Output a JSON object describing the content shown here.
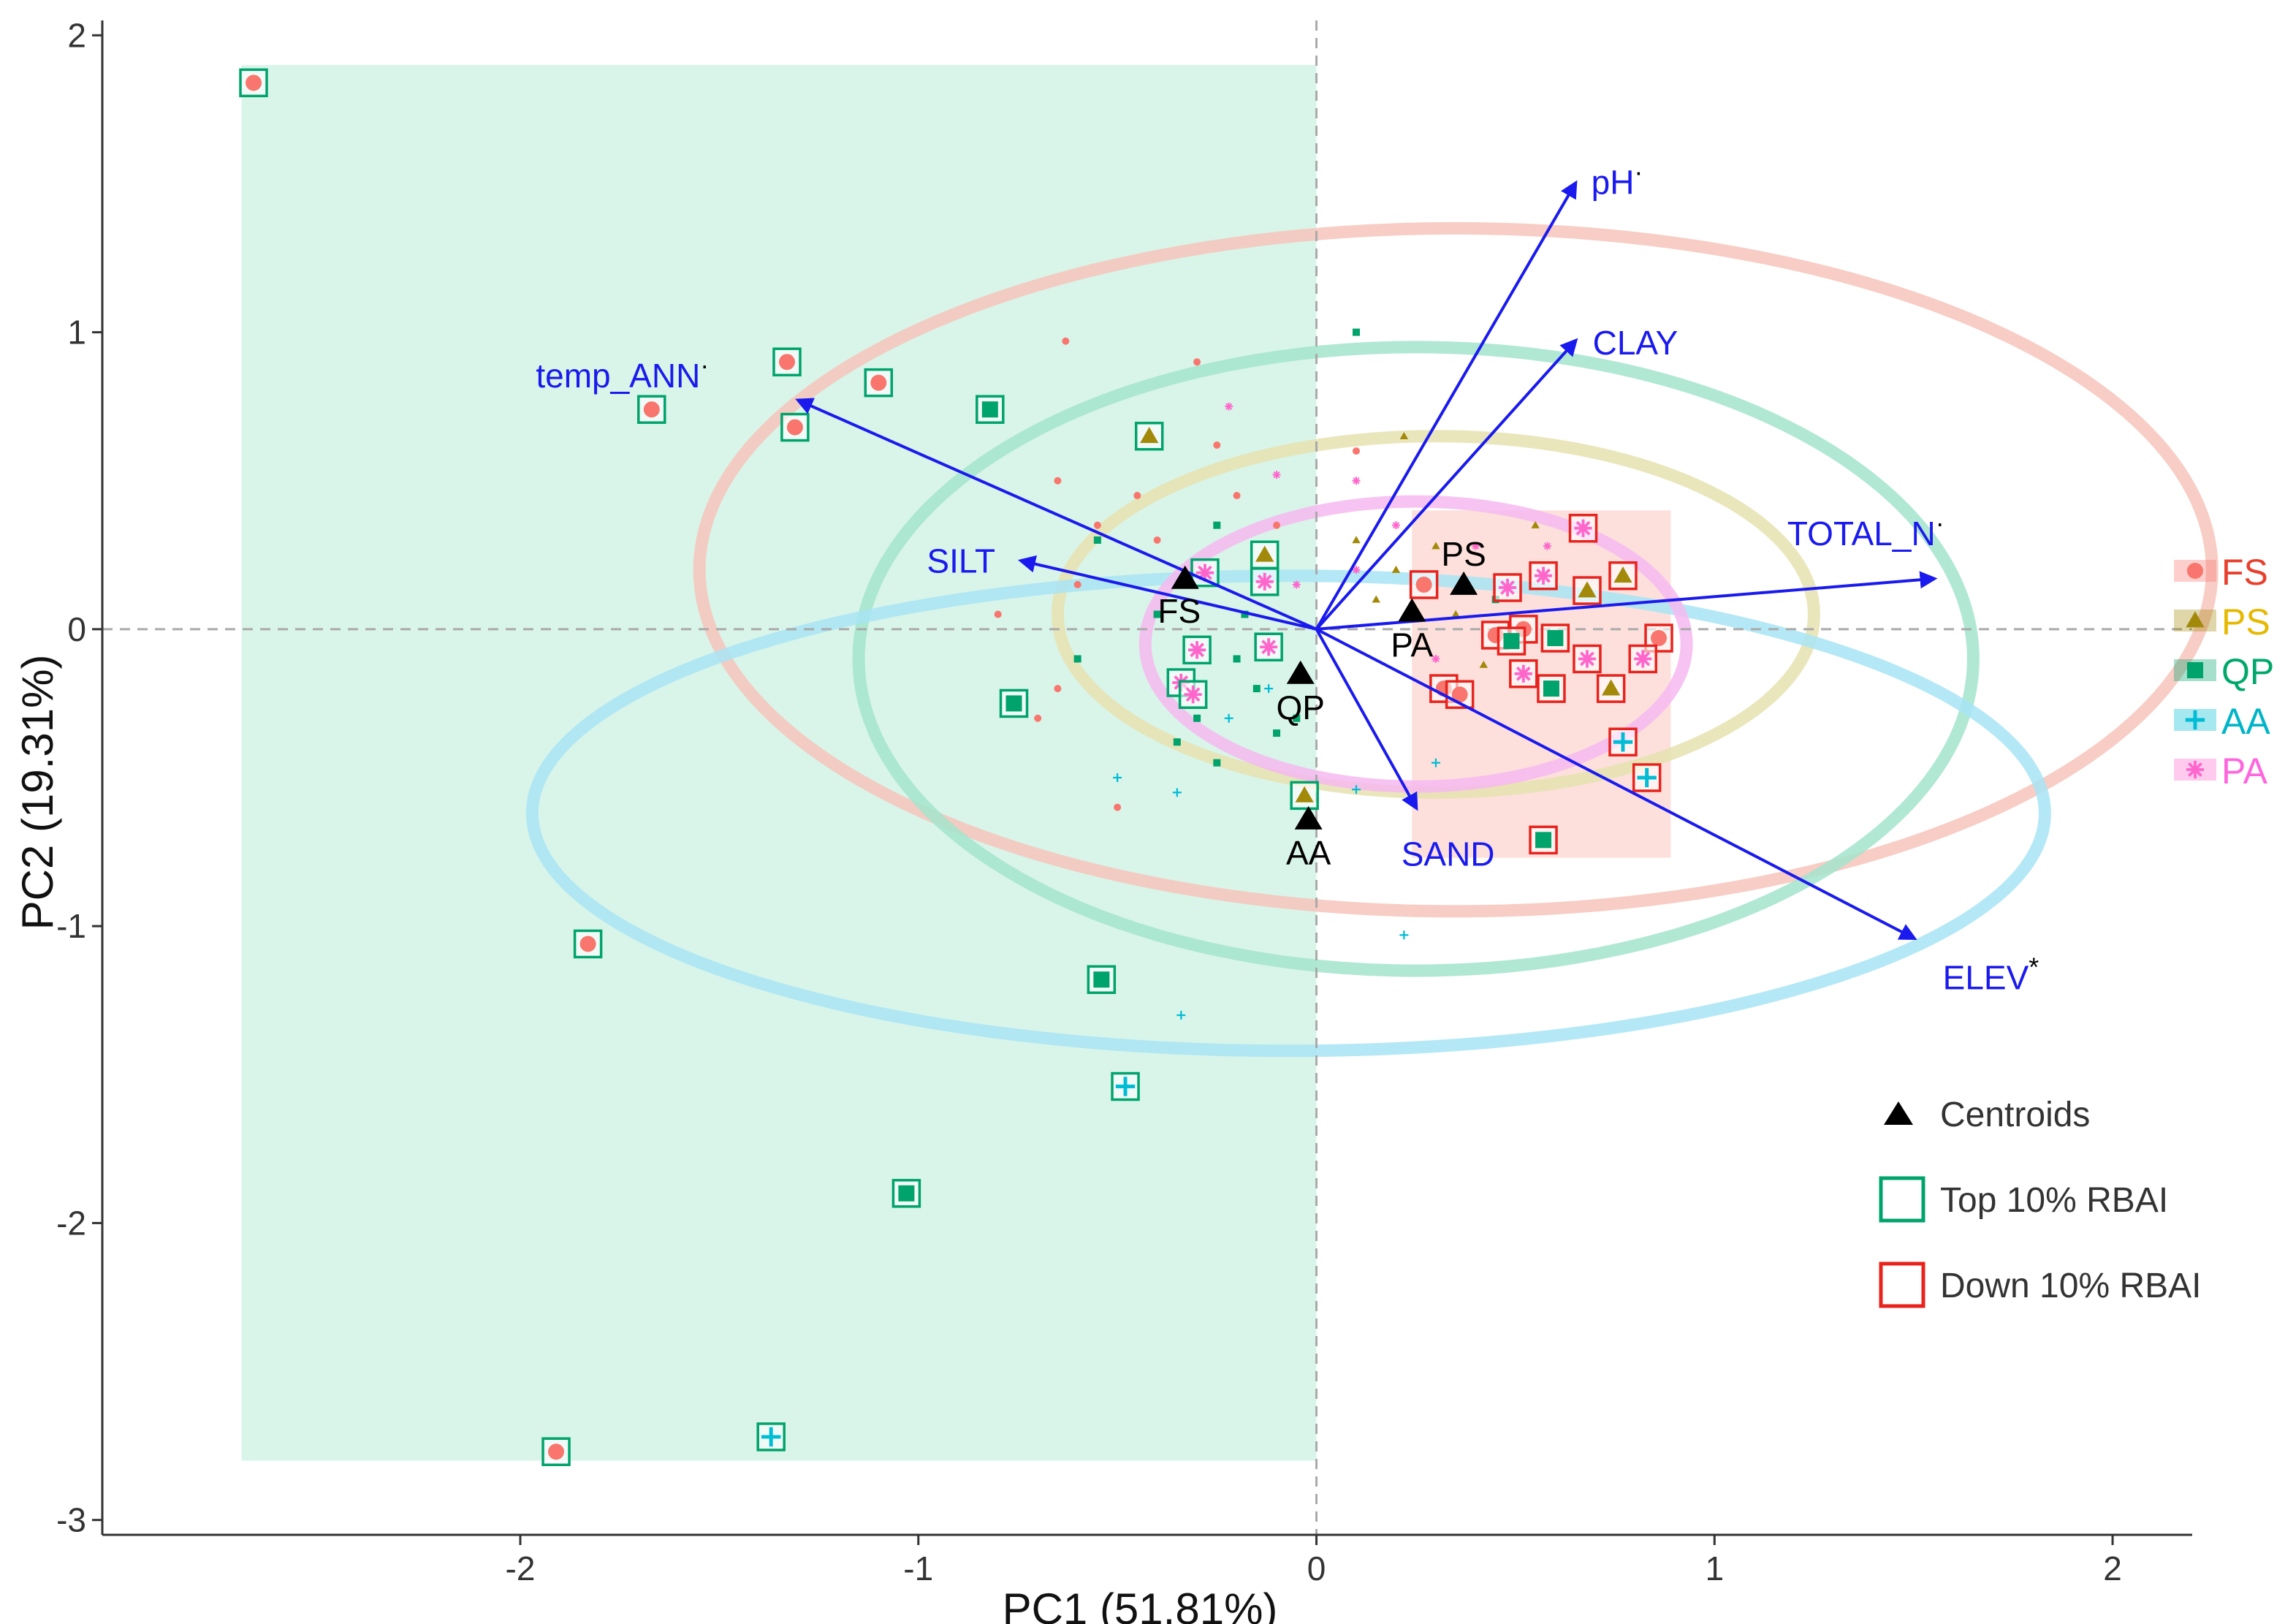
{
  "chart_data": {
    "type": "scatter",
    "title": "",
    "xlabel": "PC1 (51.81%)",
    "ylabel": "PC2 (19.31%)",
    "xlim": [
      -3.05,
      2.2
    ],
    "ylim": [
      -3.05,
      2.05
    ],
    "xticks": [
      -2,
      -1,
      0,
      1,
      2
    ],
    "yticks": [
      -3,
      -2,
      1,
      2
    ],
    "ytick_zero": "0",
    "ytick_minus1": "-1",
    "grid": false,
    "reference_lines": {
      "x": 0,
      "y": 0,
      "style": "dashed"
    },
    "groups": [
      {
        "code": "FS",
        "name": "FS",
        "color": "#f8766d",
        "label_color": "#e8402e",
        "marker": "circle"
      },
      {
        "code": "PS",
        "name": "PS",
        "color": "#a3890a",
        "label_color": "#e6b800",
        "marker": "triangle"
      },
      {
        "code": "QP",
        "name": "QP",
        "color": "#00a36c",
        "label_color": "#00a86b",
        "marker": "square"
      },
      {
        "code": "AA",
        "name": "AA",
        "color": "#00bcd4",
        "label_color": "#00b5c8",
        "marker": "plus"
      },
      {
        "code": "PA",
        "name": "PA",
        "color": "#ff66cc",
        "label_color": "#ff66dd",
        "marker": "asterisk"
      }
    ],
    "ellipses": [
      {
        "group": "FS",
        "cx": 0.35,
        "cy": 0.2,
        "rx": 1.9,
        "ry": 1.15,
        "color": "#f6c4bb"
      },
      {
        "group": "QP",
        "cx": 0.25,
        "cy": -0.1,
        "rx": 1.4,
        "ry": 1.05,
        "color": "#a3e4cc"
      },
      {
        "group": "PS",
        "cx": 0.3,
        "cy": 0.05,
        "rx": 0.95,
        "ry": 0.6,
        "color": "#e6e2b0"
      },
      {
        "group": "AA",
        "cx": -0.07,
        "cy": -0.62,
        "rx": 1.9,
        "ry": 0.8,
        "color": "#a8e4f5"
      },
      {
        "group": "PA",
        "cx": 0.25,
        "cy": -0.05,
        "rx": 0.68,
        "ry": 0.48,
        "color": "#f6b8f0"
      }
    ],
    "regions": [
      {
        "name": "top-10pct-rbai-region",
        "x": [
          -2.7,
          0
        ],
        "y": [
          -2.8,
          1.9
        ],
        "color": "#d9f5ea"
      },
      {
        "name": "down-10pct-rbai-region",
        "x": [
          0.24,
          0.89
        ],
        "y": [
          -0.77,
          0.4
        ],
        "color": "#fde0dc"
      }
    ],
    "vectors": [
      {
        "name": "pH",
        "label": "pH",
        "mark": "·",
        "x": 0.65,
        "y": 1.5
      },
      {
        "name": "CLAY",
        "label": "CLAY",
        "mark": "",
        "x": 0.65,
        "y": 0.97
      },
      {
        "name": "TOTAL_N",
        "label": "TOTAL_N",
        "mark": "·",
        "x": 1.55,
        "y": 0.17
      },
      {
        "name": "ELEV",
        "label": "ELEV",
        "mark": "*",
        "x": 1.5,
        "y": -1.04
      },
      {
        "name": "SAND",
        "label": "SAND",
        "mark": "",
        "x": 0.25,
        "y": -0.6
      },
      {
        "name": "SILT",
        "label": "SILT",
        "mark": "",
        "x": -0.74,
        "y": 0.23
      },
      {
        "name": "temp_ANN",
        "label": "temp_ANN",
        "mark": "·",
        "x": -1.3,
        "y": 0.77
      }
    ],
    "centroids": [
      {
        "label": "FS",
        "x": -0.33,
        "y": 0.17
      },
      {
        "label": "PS",
        "x": 0.37,
        "y": 0.15
      },
      {
        "label": "PA",
        "x": 0.24,
        "y": 0.06
      },
      {
        "label": "QP",
        "x": -0.04,
        "y": -0.15
      },
      {
        "label": "AA",
        "x": -0.02,
        "y": -0.64
      }
    ],
    "highlighted_points": [
      {
        "g": "FS",
        "x": -2.67,
        "y": 1.84,
        "box": "top"
      },
      {
        "g": "FS",
        "x": -1.67,
        "y": 0.74,
        "box": "top"
      },
      {
        "g": "FS",
        "x": -1.33,
        "y": 0.9,
        "box": "top"
      },
      {
        "g": "FS",
        "x": -1.31,
        "y": 0.68,
        "box": "top"
      },
      {
        "g": "FS",
        "x": -1.1,
        "y": 0.83,
        "box": "top"
      },
      {
        "g": "FS",
        "x": -1.83,
        "y": -1.06,
        "box": "top"
      },
      {
        "g": "FS",
        "x": -1.91,
        "y": -2.77,
        "box": "top"
      },
      {
        "g": "QP",
        "x": -0.82,
        "y": 0.74,
        "box": "top"
      },
      {
        "g": "QP",
        "x": -0.76,
        "y": -0.25,
        "box": "top"
      },
      {
        "g": "QP",
        "x": -0.54,
        "y": -1.18,
        "box": "top"
      },
      {
        "g": "QP",
        "x": -1.03,
        "y": -1.9,
        "box": "top"
      },
      {
        "g": "AA",
        "x": -0.48,
        "y": -1.54,
        "box": "top"
      },
      {
        "g": "AA",
        "x": -1.37,
        "y": -2.72,
        "box": "top"
      },
      {
        "g": "PS",
        "x": -0.42,
        "y": 0.65,
        "box": "top"
      },
      {
        "g": "PS",
        "x": -0.13,
        "y": 0.25,
        "box": "top"
      },
      {
        "g": "PS",
        "x": -0.03,
        "y": -0.56,
        "box": "top"
      },
      {
        "g": "PA",
        "x": -0.28,
        "y": 0.19,
        "box": "top"
      },
      {
        "g": "PA",
        "x": -0.13,
        "y": 0.16,
        "box": "top"
      },
      {
        "g": "PA",
        "x": -0.3,
        "y": -0.07,
        "box": "top"
      },
      {
        "g": "PA",
        "x": -0.12,
        "y": -0.06,
        "box": "top"
      },
      {
        "g": "PA",
        "x": -0.34,
        "y": -0.18,
        "box": "top"
      },
      {
        "g": "PA",
        "x": -0.31,
        "y": -0.22,
        "box": "top"
      },
      {
        "g": "FS",
        "x": 0.27,
        "y": 0.15,
        "box": "down"
      },
      {
        "g": "FS",
        "x": 0.32,
        "y": -0.2,
        "box": "down"
      },
      {
        "g": "FS",
        "x": 0.36,
        "y": -0.22,
        "box": "down"
      },
      {
        "g": "FS",
        "x": 0.45,
        "y": -0.02,
        "box": "down"
      },
      {
        "g": "FS",
        "x": 0.52,
        "y": 0.0,
        "box": "down"
      },
      {
        "g": "FS",
        "x": 0.86,
        "y": -0.03,
        "box": "down"
      },
      {
        "g": "PS",
        "x": 0.68,
        "y": 0.13,
        "box": "down"
      },
      {
        "g": "PS",
        "x": 0.77,
        "y": 0.18,
        "box": "down"
      },
      {
        "g": "PS",
        "x": 0.74,
        "y": -0.2,
        "box": "down"
      },
      {
        "g": "QP",
        "x": 0.49,
        "y": -0.04,
        "box": "down"
      },
      {
        "g": "QP",
        "x": 0.6,
        "y": -0.03,
        "box": "down"
      },
      {
        "g": "QP",
        "x": 0.59,
        "y": -0.2,
        "box": "down"
      },
      {
        "g": "QP",
        "x": 0.57,
        "y": -0.71,
        "box": "down"
      },
      {
        "g": "AA",
        "x": 0.77,
        "y": -0.38,
        "box": "down"
      },
      {
        "g": "AA",
        "x": 0.83,
        "y": -0.5,
        "box": "down"
      },
      {
        "g": "PA",
        "x": 0.67,
        "y": 0.34,
        "box": "down"
      },
      {
        "g": "PA",
        "x": 0.48,
        "y": 0.14,
        "box": "down"
      },
      {
        "g": "PA",
        "x": 0.57,
        "y": 0.18,
        "box": "down"
      },
      {
        "g": "PA",
        "x": 0.52,
        "y": -0.15,
        "box": "down"
      },
      {
        "g": "PA",
        "x": 0.68,
        "y": -0.1,
        "box": "down"
      },
      {
        "g": "PA",
        "x": 0.82,
        "y": -0.1,
        "box": "down"
      }
    ],
    "small_points": [
      {
        "g": "FS",
        "x": -0.65,
        "y": 0.5
      },
      {
        "g": "FS",
        "x": -0.55,
        "y": 0.35
      },
      {
        "g": "FS",
        "x": -0.4,
        "y": 0.3
      },
      {
        "g": "FS",
        "x": -0.2,
        "y": 0.45
      },
      {
        "g": "FS",
        "x": -0.6,
        "y": 0.15
      },
      {
        "g": "FS",
        "x": -0.7,
        "y": -0.3
      },
      {
        "g": "FS",
        "x": -0.5,
        "y": -0.6
      },
      {
        "g": "FS",
        "x": -0.65,
        "y": -0.2
      },
      {
        "g": "FS",
        "x": -0.1,
        "y": 0.35
      },
      {
        "g": "FS",
        "x": -0.3,
        "y": 0.9
      },
      {
        "g": "FS",
        "x": -0.63,
        "y": 0.97
      },
      {
        "g": "FS",
        "x": 0.1,
        "y": 0.6
      },
      {
        "g": "FS",
        "x": -0.45,
        "y": 0.45
      },
      {
        "g": "FS",
        "x": -0.8,
        "y": 0.05
      },
      {
        "g": "FS",
        "x": -0.25,
        "y": 0.62
      },
      {
        "g": "PS",
        "x": 0.1,
        "y": 0.3
      },
      {
        "g": "PS",
        "x": 0.2,
        "y": 0.2
      },
      {
        "g": "PS",
        "x": 0.3,
        "y": 0.28
      },
      {
        "g": "PS",
        "x": 0.22,
        "y": 0.65
      },
      {
        "g": "PS",
        "x": 0.35,
        "y": 0.05
      },
      {
        "g": "PS",
        "x": 0.15,
        "y": 0.1
      },
      {
        "g": "PS",
        "x": 0.42,
        "y": -0.12
      },
      {
        "g": "PS",
        "x": 0.55,
        "y": 0.35
      },
      {
        "g": "QP",
        "x": -0.55,
        "y": 0.3
      },
      {
        "g": "QP",
        "x": -0.25,
        "y": 0.35
      },
      {
        "g": "QP",
        "x": -0.2,
        "y": -0.1
      },
      {
        "g": "QP",
        "x": -0.3,
        "y": -0.3
      },
      {
        "g": "QP",
        "x": -0.15,
        "y": -0.2
      },
      {
        "g": "QP",
        "x": -0.1,
        "y": -0.35
      },
      {
        "g": "QP",
        "x": -0.25,
        "y": -0.45
      },
      {
        "g": "QP",
        "x": -0.05,
        "y": -0.3
      },
      {
        "g": "QP",
        "x": 0.1,
        "y": 1.0
      },
      {
        "g": "QP",
        "x": -0.4,
        "y": 0.05
      },
      {
        "g": "QP",
        "x": -0.35,
        "y": -0.38
      },
      {
        "g": "QP",
        "x": 0.45,
        "y": 0.1
      },
      {
        "g": "QP",
        "x": -0.6,
        "y": -0.1
      },
      {
        "g": "QP",
        "x": -0.18,
        "y": 0.05
      },
      {
        "g": "AA",
        "x": -0.5,
        "y": -0.5
      },
      {
        "g": "AA",
        "x": -0.35,
        "y": -0.55
      },
      {
        "g": "AA",
        "x": -0.22,
        "y": -0.3
      },
      {
        "g": "AA",
        "x": 0.1,
        "y": -0.54
      },
      {
        "g": "AA",
        "x": -0.34,
        "y": -1.3
      },
      {
        "g": "AA",
        "x": 0.22,
        "y": -1.03
      },
      {
        "g": "AA",
        "x": -0.12,
        "y": -0.2
      },
      {
        "g": "AA",
        "x": 0.3,
        "y": -0.45
      },
      {
        "g": "PA",
        "x": -0.22,
        "y": 0.75
      },
      {
        "g": "PA",
        "x": -0.1,
        "y": 0.52
      },
      {
        "g": "PA",
        "x": 0.1,
        "y": 0.5
      },
      {
        "g": "PA",
        "x": 0.2,
        "y": 0.35
      },
      {
        "g": "PA",
        "x": 0.3,
        "y": -0.1
      },
      {
        "g": "PA",
        "x": 0.4,
        "y": 0.28
      },
      {
        "g": "PA",
        "x": 0.1,
        "y": 0.2
      },
      {
        "g": "PA",
        "x": -0.05,
        "y": 0.15
      },
      {
        "g": "PA",
        "x": 0.58,
        "y": 0.28
      }
    ],
    "legend": {
      "position": "right",
      "items": [
        "FS",
        "PS",
        "QP",
        "AA",
        "PA"
      ]
    },
    "legend2": {
      "position": "bottom-right",
      "items": [
        {
          "name": "centroids",
          "label": "Centroids",
          "symbol": "triangle",
          "color": "#000000"
        },
        {
          "name": "top-rbai",
          "label": "Top 10% RBAI",
          "symbol": "box",
          "color": "#00a36c"
        },
        {
          "name": "down-rbai",
          "label": "Down 10% RBAI",
          "symbol": "box",
          "color": "#e8231d"
        }
      ]
    }
  }
}
